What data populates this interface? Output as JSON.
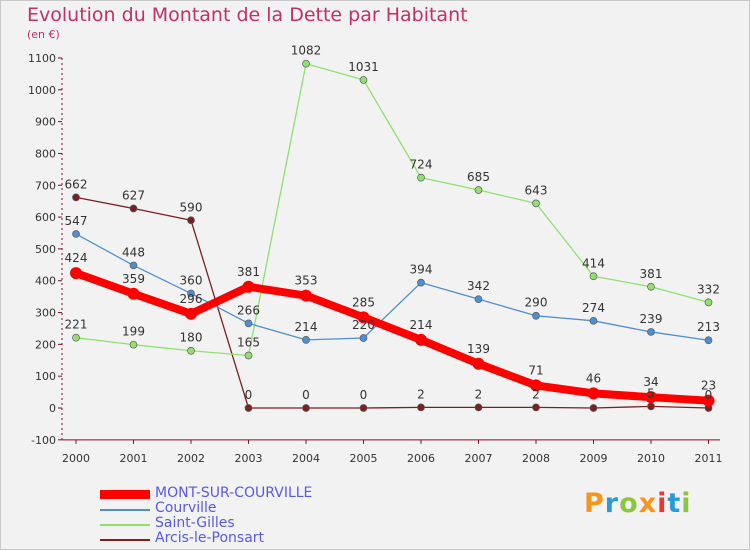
{
  "title": "Evolution du Montant de la Dette par Habitant",
  "subtitle": "(en €)",
  "logo": {
    "text": "Proxiti",
    "colors": [
      "#f7941d",
      "#2a9bd8",
      "#8cc63f",
      "#f7941d",
      "#e53935",
      "#2a9bd8",
      "#8cc63f"
    ]
  },
  "chart_data": {
    "type": "line",
    "x": [
      "2000",
      "2001",
      "2002",
      "2003",
      "2004",
      "2005",
      "2006",
      "2007",
      "2008",
      "2009",
      "2010",
      "2011"
    ],
    "ylim": [
      -100,
      1100
    ],
    "yticks": [
      -100,
      0,
      100,
      200,
      300,
      400,
      500,
      600,
      700,
      800,
      900,
      1000,
      1100
    ],
    "grid": false,
    "legend_position": "bottom-left",
    "series": [
      {
        "name": "MONT-SUR-COURVILLE",
        "color": "#ff0000",
        "values": [
          424,
          359,
          296,
          381,
          353,
          285,
          214,
          139,
          71,
          46,
          34,
          23
        ],
        "labels": [
          "424",
          "359",
          "296",
          "381",
          "353",
          "285",
          "214",
          "139",
          "71",
          "46",
          "34",
          "23"
        ]
      },
      {
        "name": "Courville",
        "color": "#4f8fd0",
        "values": [
          547,
          448,
          360,
          266,
          214,
          220,
          394,
          342,
          290,
          274,
          239,
          213
        ],
        "labels": [
          "547",
          "448",
          "360",
          "266",
          "214",
          "220",
          "394",
          "342",
          "290",
          "274",
          "239",
          "213"
        ]
      },
      {
        "name": "Saint-Gilles",
        "color": "#90e070",
        "values": [
          221,
          199,
          180,
          165,
          1082,
          1031,
          724,
          685,
          643,
          414,
          381,
          332
        ],
        "labels": [
          "221",
          "199",
          "180",
          "165",
          "1082",
          "1031",
          "724",
          "685",
          "643",
          "414",
          "381",
          "332"
        ]
      },
      {
        "name": "Arcis-le-Ponsart",
        "color": "#7a2020",
        "values": [
          662,
          627,
          590,
          0,
          0,
          0,
          2,
          2,
          2,
          0,
          5,
          0
        ],
        "labels": [
          "662",
          "627",
          "590",
          "0",
          "0",
          "0",
          "2",
          "2",
          "2",
          "",
          "5",
          "0"
        ]
      }
    ]
  }
}
